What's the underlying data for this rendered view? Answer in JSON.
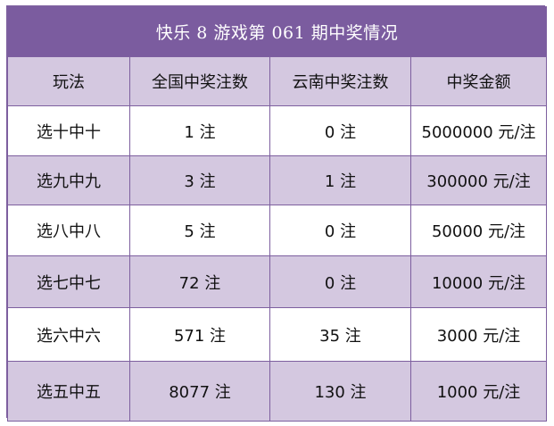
{
  "title": "快乐 8 游戏第 061 期中奖情况",
  "headers": [
    "玩法",
    "全国中奖注数",
    "云南中奖注数",
    "中奖金额"
  ],
  "rows": [
    [
      "选十中十",
      "1 注",
      "0 注",
      "5000000 元/注"
    ],
    [
      "选九中九",
      "3 注",
      "1 注",
      "300000 元/注"
    ],
    [
      "选八中八",
      "5 注",
      "0 注",
      "50000 元/注"
    ],
    [
      "选七中七",
      "72 注",
      "0 注",
      "10000 元/注"
    ],
    [
      "选六中六",
      "571 注",
      "35 注",
      "3000 元/注"
    ],
    [
      "选五中五",
      "8077 注",
      "130 注",
      "1000 元/注"
    ]
  ],
  "colors": {
    "title_bg": "#7b5c9f",
    "header_bg": "#d4c8e0",
    "stripe_bg": "#d4c8e0",
    "border": "#7d5f9f"
  }
}
